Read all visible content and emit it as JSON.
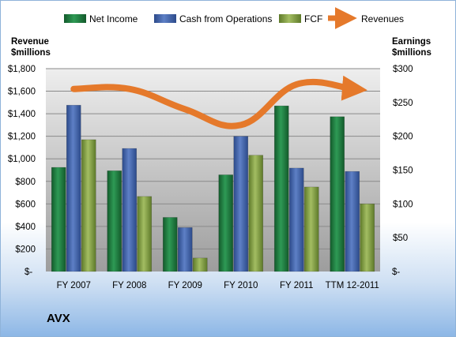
{
  "company_label": "AVX",
  "chart_data": {
    "type": "bar",
    "categories": [
      "FY 2007",
      "FY 2008",
      "FY 2009",
      "FY 2010",
      "FY 2011",
      "TTM 12-2011"
    ],
    "series": [
      {
        "name": "Net Income",
        "axis": "right",
        "values": [
          154,
          149,
          80,
          143,
          245,
          229
        ],
        "color": "#1e7a3e"
      },
      {
        "name": "Cash from Operations",
        "axis": "right",
        "values": [
          246,
          182,
          65,
          200,
          153,
          148
        ],
        "color": "#3e62ae"
      },
      {
        "name": "FCF",
        "axis": "right",
        "values": [
          195,
          111,
          20,
          172,
          125,
          100
        ],
        "color": "#7e9b3d"
      },
      {
        "name": "Revenues",
        "axis": "left",
        "type": "line",
        "values": [
          1620,
          1620,
          1440,
          1300,
          1660,
          1620
        ],
        "color": "#e5792b"
      }
    ],
    "left_axis": {
      "title": [
        "Revenue",
        "$millions"
      ],
      "ylim": [
        0,
        1800
      ],
      "ticks": [
        "$-",
        "$200",
        "$400",
        "$600",
        "$800",
        "$1,000",
        "$1,200",
        "$1,400",
        "$1,600",
        "$1,800"
      ],
      "tick_values": [
        0,
        200,
        400,
        600,
        800,
        1000,
        1200,
        1400,
        1600,
        1800
      ]
    },
    "right_axis": {
      "title": [
        "Earnings",
        "$millions"
      ],
      "ylim": [
        0,
        300
      ],
      "ticks": [
        "$-",
        "$50",
        "$100",
        "$150",
        "$200",
        "$250",
        "$300"
      ],
      "tick_values": [
        0,
        50,
        100,
        150,
        200,
        250,
        300
      ]
    },
    "grid": true,
    "legend_position": "top"
  }
}
